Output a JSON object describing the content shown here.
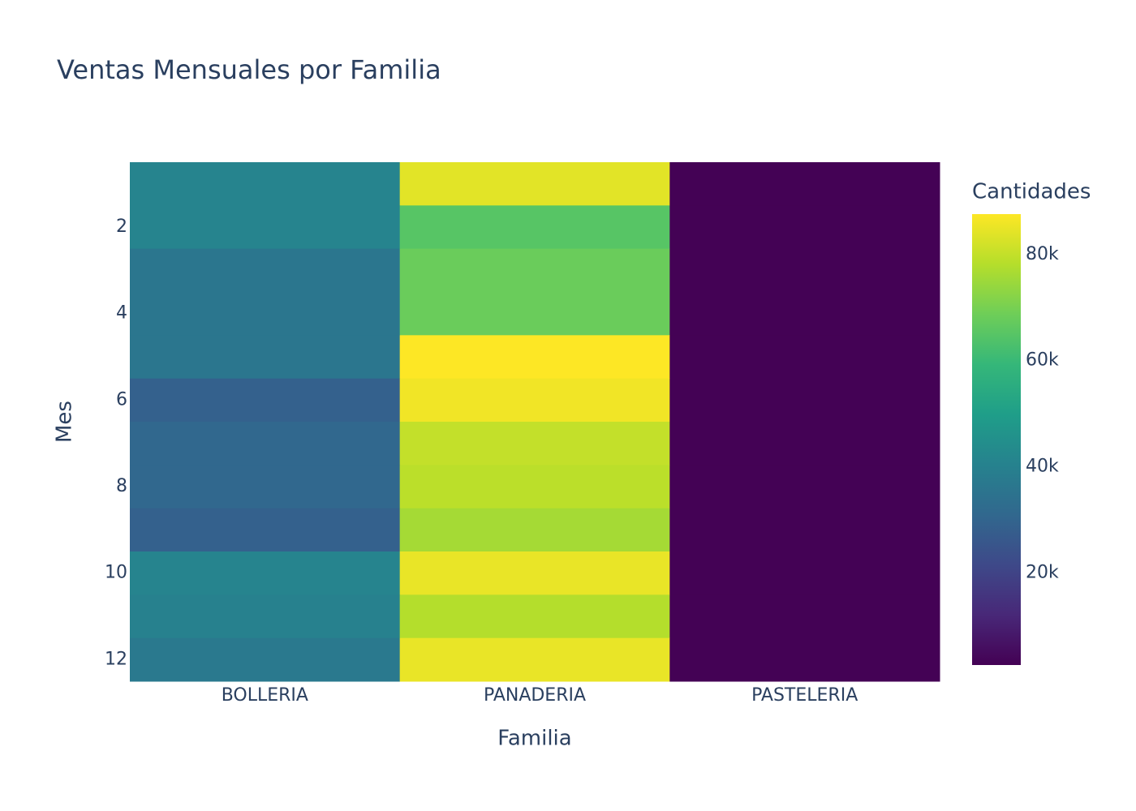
{
  "chart_data": {
    "type": "heatmap",
    "title": "Ventas Mensuales por Familia",
    "x_label": "Familia",
    "y_label": "Mes",
    "colorbar_title": "Cantidades",
    "categories": [
      "BOLLERIA",
      "PANADERIA",
      "PASTELERIA"
    ],
    "y": [
      1,
      2,
      3,
      4,
      5,
      6,
      7,
      8,
      9,
      10,
      11,
      12
    ],
    "z": [
      [
        41000,
        84000,
        3000
      ],
      [
        41000,
        65000,
        3000
      ],
      [
        36000,
        68000,
        3000
      ],
      [
        36000,
        68000,
        3000
      ],
      [
        36000,
        87600,
        3000
      ],
      [
        29000,
        86000,
        3000
      ],
      [
        31000,
        80000,
        3000
      ],
      [
        31000,
        79000,
        3000
      ],
      [
        29000,
        76000,
        3000
      ],
      [
        41000,
        85000,
        3000
      ],
      [
        40000,
        78000,
        3000
      ],
      [
        37000,
        85000,
        3000
      ]
    ],
    "ylim": [
      12.5,
      0.5
    ],
    "yticks": [
      2,
      4,
      6,
      8,
      10,
      12
    ],
    "zlim": [
      2700,
      87600
    ],
    "zticks": [
      {
        "value": 20000,
        "label": "20k"
      },
      {
        "value": 40000,
        "label": "40k"
      },
      {
        "value": 60000,
        "label": "60k"
      },
      {
        "value": 80000,
        "label": "80k"
      }
    ],
    "colorscale": [
      "#440154",
      "#482878",
      "#3e4989",
      "#31688e",
      "#26828e",
      "#1f9e89",
      "#35b779",
      "#6ece58",
      "#b5de2b",
      "#fde725"
    ]
  }
}
